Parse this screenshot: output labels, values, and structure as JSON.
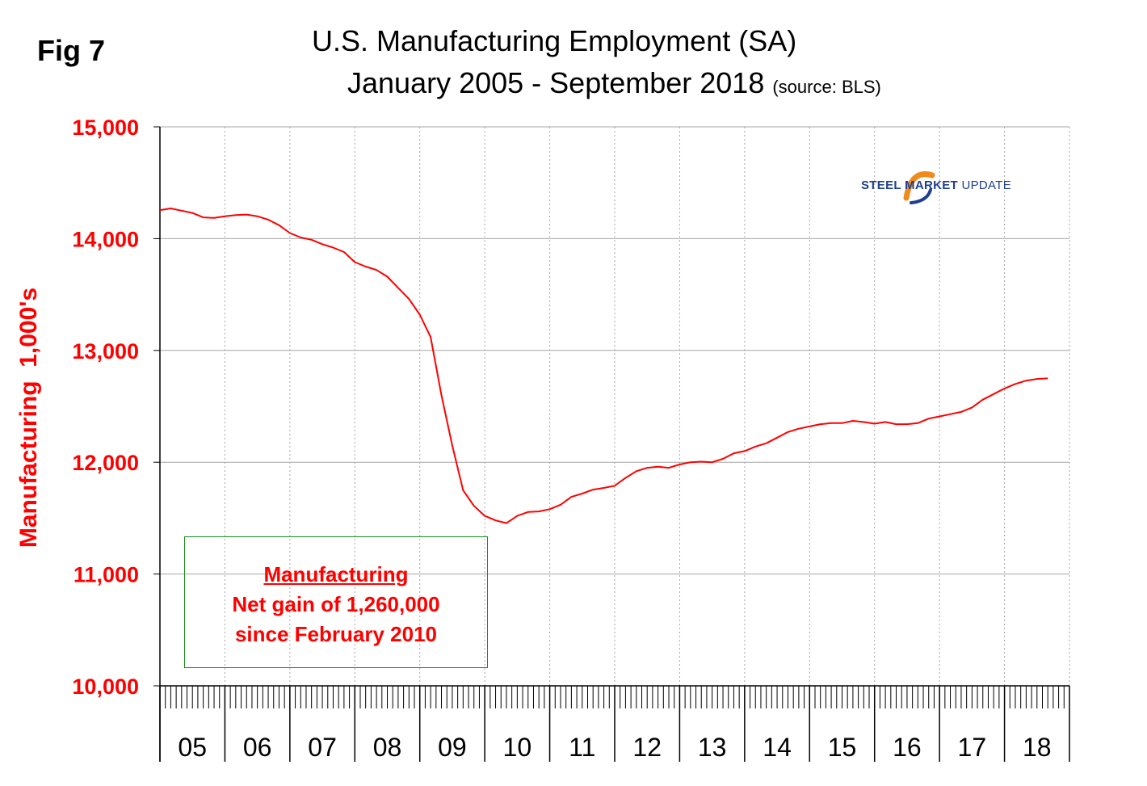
{
  "figure_label": "Fig 7",
  "title_line1": "U.S. Manufacturing Employment (SA)",
  "title_line2": "January 2005 - September 2018",
  "source_note": "(source: BLS)",
  "logo": {
    "text_bold": "STEEL MARKET",
    "text_light": "UPDATE"
  },
  "annotation": {
    "heading": "Manufacturing",
    "line1": "Net gain of 1,260,000",
    "line2": "since February 2010"
  },
  "colors": {
    "series": "#ff0000",
    "axis_text": "#ff0000",
    "box_border": "#1a8a1a",
    "grid": "#a6a6a6",
    "logo_blue": "#1f3f8f",
    "logo_orange": "#f08a1c"
  },
  "chart_data": {
    "type": "line",
    "title": "U.S. Manufacturing Employment (SA) January 2005 - September 2018",
    "xlabel": "",
    "ylabel": "Manufacturing  1,000's",
    "ylim": [
      10000,
      15000
    ],
    "yticks": [
      10000,
      11000,
      12000,
      13000,
      14000,
      15000
    ],
    "ytick_labels": [
      "10,000",
      "11,000",
      "12,000",
      "13,000",
      "14,000",
      "15,000"
    ],
    "xlim_months": [
      0,
      168
    ],
    "year_labels": [
      "05",
      "06",
      "07",
      "08",
      "09",
      "10",
      "11",
      "12",
      "13",
      "14",
      "15",
      "16",
      "17",
      "18"
    ],
    "grid": true,
    "series": [
      {
        "name": "Manufacturing employment (thousands, SA)",
        "x_month_index": [
          0,
          2,
          4,
          6,
          8,
          10,
          12,
          14,
          16,
          18,
          20,
          22,
          24,
          26,
          28,
          30,
          32,
          34,
          36,
          38,
          40,
          42,
          44,
          46,
          48,
          50,
          52,
          54,
          56,
          58,
          60,
          62,
          64,
          66,
          68,
          70,
          72,
          74,
          76,
          78,
          80,
          82,
          84,
          86,
          88,
          90,
          92,
          94,
          96,
          98,
          100,
          102,
          104,
          106,
          108,
          110,
          112,
          114,
          116,
          118,
          120,
          122,
          124,
          126,
          128,
          130,
          132,
          134,
          136,
          138,
          140,
          142,
          144,
          146,
          148,
          150,
          152,
          154,
          156,
          158,
          160,
          162,
          164
        ],
        "values": [
          14255,
          14270,
          14250,
          14230,
          14190,
          14185,
          14200,
          14210,
          14215,
          14200,
          14170,
          14120,
          14050,
          14010,
          13990,
          13950,
          13920,
          13880,
          13790,
          13750,
          13720,
          13660,
          13560,
          13460,
          13320,
          13120,
          12600,
          12150,
          11750,
          11610,
          11520,
          11480,
          11455,
          11520,
          11555,
          11560,
          11580,
          11620,
          11690,
          11720,
          11755,
          11770,
          11790,
          11860,
          11920,
          11950,
          11960,
          11950,
          11980,
          12000,
          12005,
          12000,
          12030,
          12080,
          12100,
          12140,
          12170,
          12220,
          12270,
          12300,
          12320,
          12340,
          12350,
          12350,
          12370,
          12360,
          12345,
          12360,
          12340,
          12340,
          12350,
          12390,
          12410,
          12430,
          12450,
          12490,
          12560,
          12610,
          12660,
          12700,
          12730,
          12745,
          12750
        ]
      }
    ]
  }
}
